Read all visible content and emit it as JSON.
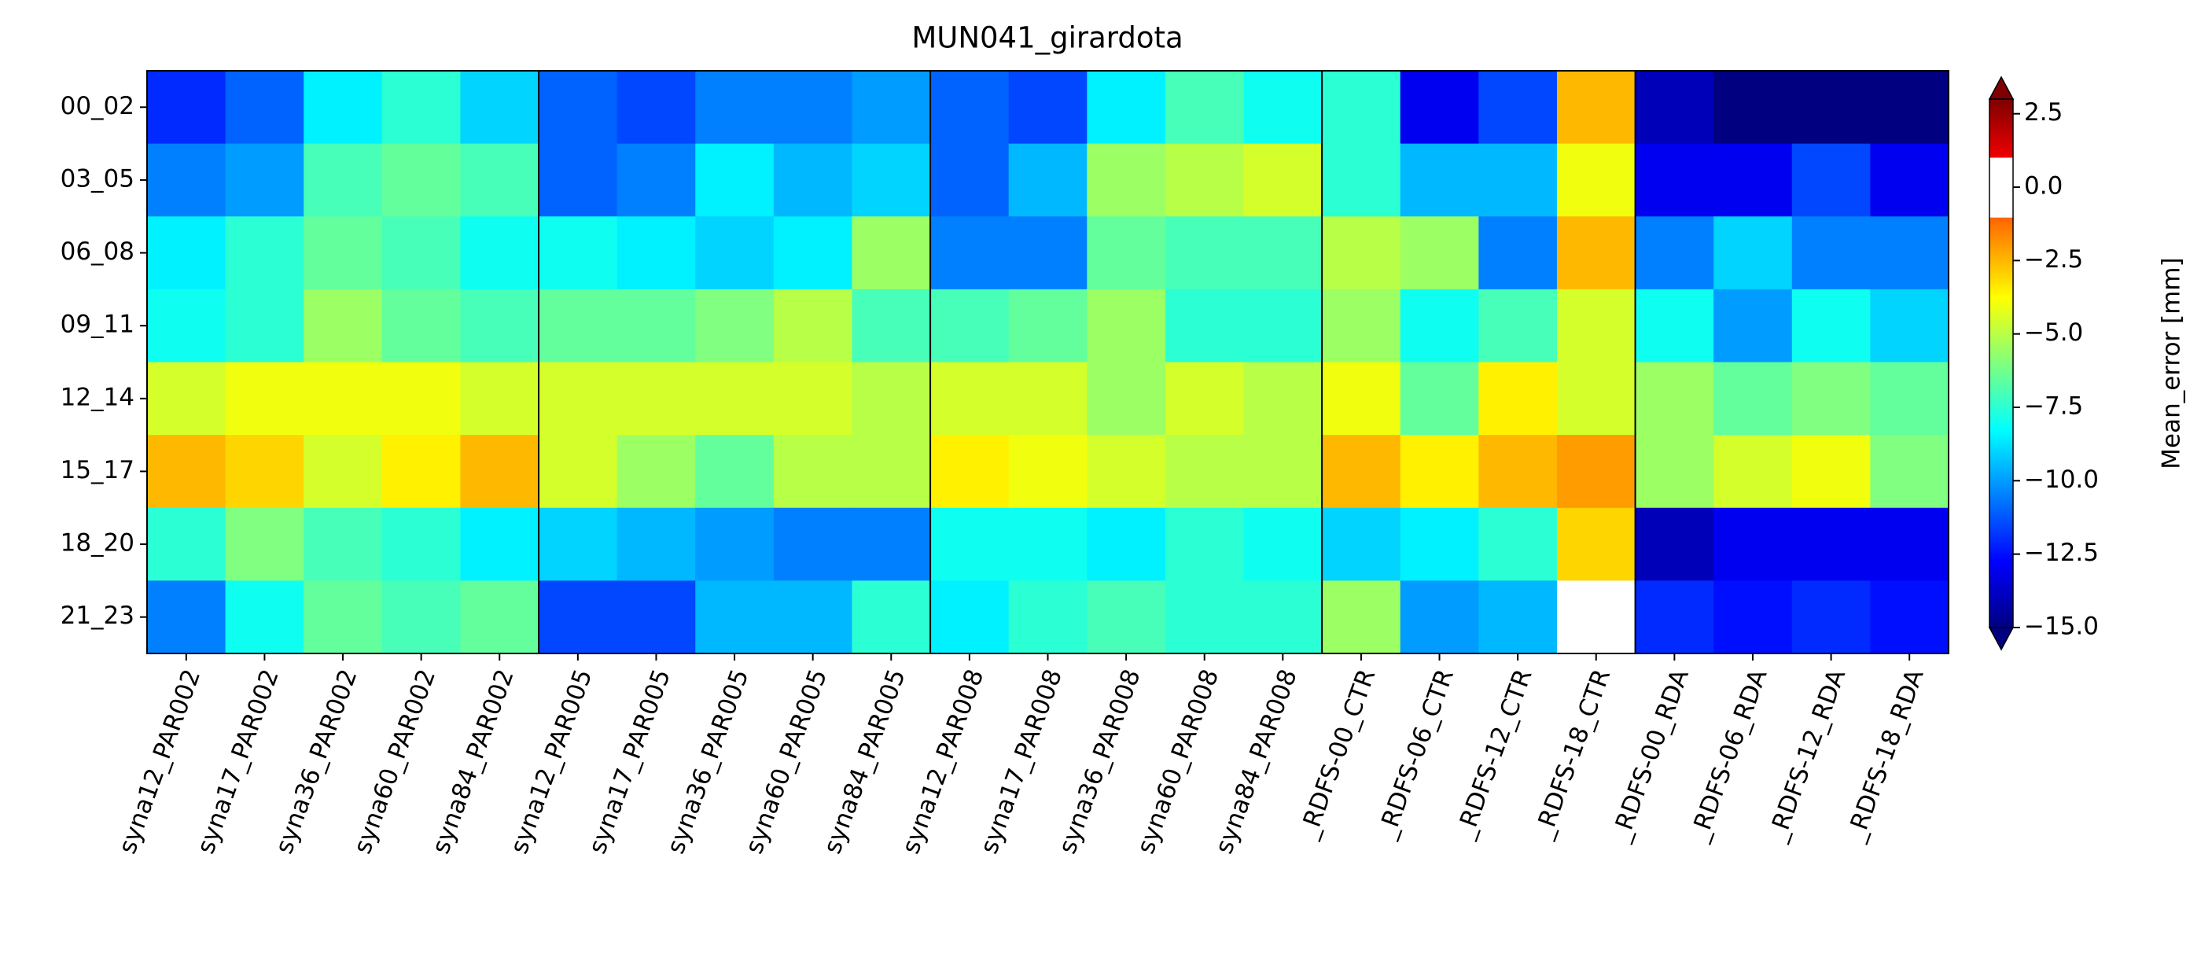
{
  "chart_data": {
    "type": "heatmap",
    "title": "MUN041_girardota",
    "categories": [
      "syna12_PAR002",
      "syna17_PAR002",
      "syna36_PAR002",
      "syna60_PAR002",
      "syna84_PAR002",
      "syna12_PAR005",
      "syna17_PAR005",
      "syna36_PAR005",
      "syna60_PAR005",
      "syna84_PAR005",
      "syna12_PAR008",
      "syna17_PAR008",
      "syna36_PAR008",
      "syna60_PAR008",
      "syna84_PAR008",
      "_RDFS-00_CTR",
      "_RDFS-06_CTR",
      "_RDFS-12_CTR",
      "_RDFS-18_CTR",
      "_RDFS-00_RDA",
      "_RDFS-06_RDA",
      "_RDFS-12_RDA",
      "_RDFS-18_RDA"
    ],
    "y_categories": [
      "00_02",
      "03_05",
      "06_08",
      "09_11",
      "12_14",
      "15_17",
      "18_20",
      "21_23"
    ],
    "values": [
      [
        -12,
        -11,
        -8.5,
        -7.5,
        -9,
        -11,
        -11.5,
        -10.5,
        -10.5,
        -10,
        -11,
        -11.5,
        -8.5,
        -7,
        -8,
        -7.5,
        -13,
        -11.5,
        -2.5,
        -14,
        -15.5,
        -15.5,
        -15.5
      ],
      [
        -10.5,
        -10,
        -7,
        -6.5,
        -7,
        -11,
        -10.5,
        -8.5,
        -9.5,
        -9,
        -11,
        -9.5,
        -5.5,
        -5,
        -4.5,
        -7.5,
        -9.5,
        -9.5,
        -4,
        -13,
        -13,
        -11.5,
        -13
      ],
      [
        -8.5,
        -7.5,
        -6.5,
        -7,
        -8,
        -8,
        -8.5,
        -9,
        -8.5,
        -5.5,
        -10.5,
        -10.5,
        -6.5,
        -7,
        -7,
        -5,
        -5.5,
        -10.5,
        -2.5,
        -10.5,
        -9,
        -10.5,
        -10.5
      ],
      [
        -8,
        -7.5,
        -5.5,
        -6.5,
        -7,
        -6.5,
        -6.5,
        -6,
        -5,
        -7,
        -7,
        -6.5,
        -5.5,
        -7.5,
        -7.5,
        -5.5,
        -8,
        -7,
        -4.5,
        -8,
        -10,
        -8,
        -9
      ],
      [
        -4.5,
        -4,
        -4,
        -4,
        -4.5,
        -4.5,
        -4.5,
        -4.5,
        -4.5,
        -5,
        -4.5,
        -4.5,
        -5.5,
        -4.5,
        -5,
        -4,
        -6.5,
        -3.5,
        -4.5,
        -5.5,
        -6.5,
        -6,
        -6.5
      ],
      [
        -2.5,
        -3,
        -4.5,
        -3.5,
        -2.5,
        -4.5,
        -5.5,
        -6.5,
        -5,
        -5,
        -3.5,
        -4,
        -4.5,
        -5,
        -5,
        -2.5,
        -3.5,
        -2.5,
        -2,
        -5.5,
        -4.5,
        -4,
        -6
      ],
      [
        -7.5,
        -6,
        -7,
        -7.5,
        -8.5,
        -9,
        -9.5,
        -10,
        -10.5,
        -10.5,
        -8,
        -8,
        -8.5,
        -7.5,
        -8,
        -9,
        -8.5,
        -7.5,
        -3,
        -14,
        -13,
        -13,
        -13
      ],
      [
        -10.5,
        -8,
        -6.5,
        -7,
        -6.5,
        -11.5,
        -11.5,
        -9.5,
        -9.5,
        -7.5,
        -8.5,
        -7.5,
        -7,
        -7.5,
        -7.5,
        -5.5,
        -10,
        -9.5,
        -0.5,
        -12,
        -12.5,
        -12,
        -12.5
      ]
    ],
    "colormap": "jet",
    "white_band": [
      -1,
      1
    ],
    "colorbar": {
      "label": "Mean_error [mm]",
      "clim": [
        -15,
        3
      ],
      "ticks": [
        2.5,
        {
          "value": 0,
          "label": "0.0"
        },
        {
          "value": -2.5,
          "label": "−2.5"
        },
        {
          "value": -5,
          "label": "−5.0"
        },
        {
          "value": -7.5,
          "label": "−7.5"
        },
        {
          "value": -10,
          "label": "−10.0"
        },
        {
          "value": -12.5,
          "label": "−12.5"
        },
        {
          "value": -15,
          "label": "−15.0"
        }
      ]
    }
  }
}
